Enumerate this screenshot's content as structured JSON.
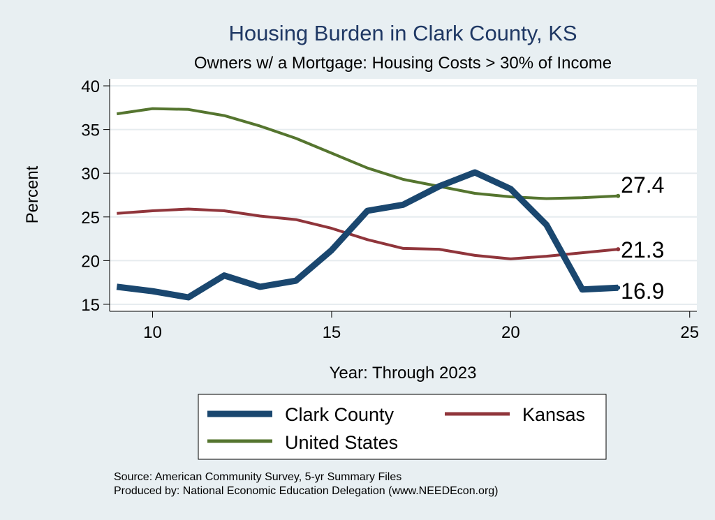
{
  "chart_data": {
    "type": "line",
    "title": "Housing Burden in Clark County, KS",
    "subtitle": "Owners w/ a Mortgage: Housing Costs > 30% of Income",
    "xlabel": "Year: Through 2023",
    "ylabel": "Percent",
    "xlim": [
      8.8,
      25.2
    ],
    "ylim": [
      14.2,
      40.8
    ],
    "xticks": [
      10,
      15,
      20,
      25
    ],
    "yticks": [
      15,
      20,
      25,
      30,
      35,
      40
    ],
    "grid": true,
    "legend_position": "bottom",
    "series": [
      {
        "name": "Clark County",
        "color": "#1a476f",
        "x": [
          9,
          10,
          11,
          12,
          13,
          14,
          15,
          16,
          17,
          18,
          19,
          20,
          21,
          22,
          23
        ],
        "values": [
          17.0,
          16.5,
          15.8,
          18.3,
          17.0,
          17.7,
          21.2,
          25.7,
          26.4,
          28.5,
          30.1,
          28.2,
          24.1,
          16.7,
          16.9
        ],
        "end_label": "16.9"
      },
      {
        "name": "Kansas",
        "color": "#90353b",
        "x": [
          9,
          10,
          11,
          12,
          13,
          14,
          15,
          16,
          17,
          18,
          19,
          20,
          21,
          22,
          23
        ],
        "values": [
          25.4,
          25.7,
          25.9,
          25.7,
          25.1,
          24.7,
          23.7,
          22.4,
          21.4,
          21.3,
          20.6,
          20.2,
          20.5,
          20.9,
          21.3
        ],
        "end_label": "21.3"
      },
      {
        "name": "United States",
        "color": "#55752f",
        "x": [
          9,
          10,
          11,
          12,
          13,
          14,
          15,
          16,
          17,
          18,
          19,
          20,
          21,
          22,
          23
        ],
        "values": [
          36.8,
          37.4,
          37.3,
          36.6,
          35.4,
          34.0,
          32.3,
          30.6,
          29.3,
          28.5,
          27.7,
          27.3,
          27.1,
          27.2,
          27.4
        ],
        "end_label": "27.4"
      }
    ],
    "legend": [
      "Clark County",
      "Kansas",
      "United States"
    ],
    "source_lines": [
      "Source: American Community Survey, 5-yr Summary Files",
      "Produced by: National Economic Education Delegation (www.NEEDEcon.org)"
    ]
  },
  "colors": {
    "background": "#e8eff2",
    "plot_background": "#ffffff",
    "grid": "#e6ecef",
    "title": "#1f3864"
  }
}
